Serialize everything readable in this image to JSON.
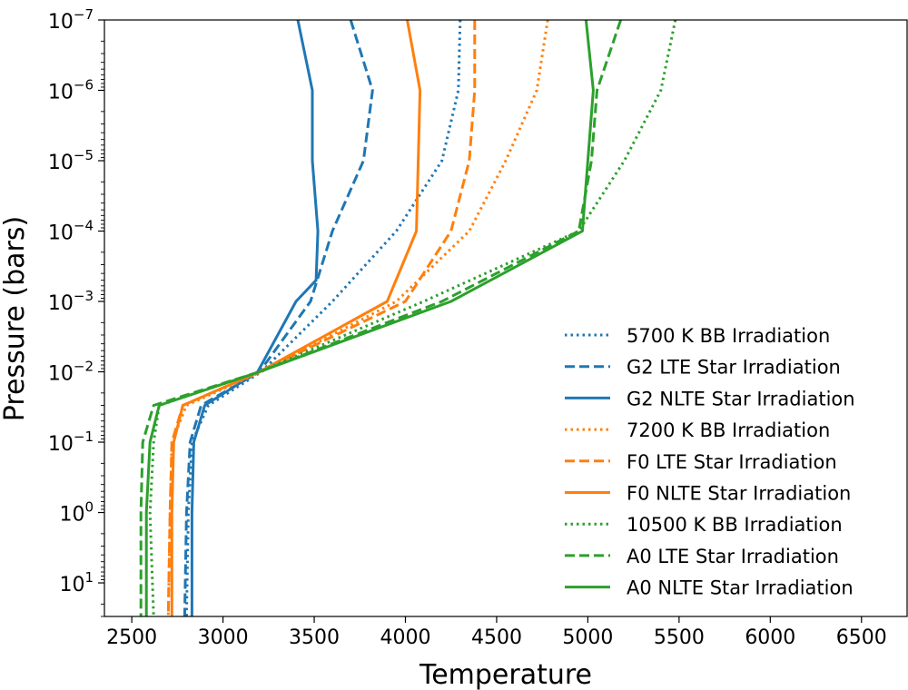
{
  "chart_data": {
    "type": "line",
    "title": "",
    "xlabel": "Temperature",
    "ylabel": "Pressure (bars)",
    "xlim": [
      2350,
      6750
    ],
    "ylim": [
      1e-07,
      30
    ],
    "y_scale": "log",
    "y_inverted": true,
    "grid": false,
    "legend_position": "center-right",
    "x_ticks": [
      2500,
      3000,
      3500,
      4000,
      4500,
      5000,
      5500,
      6000,
      6500
    ],
    "x_tick_labels": [
      "2500",
      "3000",
      "3500",
      "4000",
      "4500",
      "5000",
      "5500",
      "6000",
      "6500"
    ],
    "y_ticks": [
      {
        "value": 1e-07,
        "base": "10",
        "exp": "−7"
      },
      {
        "value": 1e-06,
        "base": "10",
        "exp": "−6"
      },
      {
        "value": 1e-05,
        "base": "10",
        "exp": "−5"
      },
      {
        "value": 0.0001,
        "base": "10",
        "exp": "−4"
      },
      {
        "value": 0.001,
        "base": "10",
        "exp": "−3"
      },
      {
        "value": 0.01,
        "base": "10",
        "exp": "−2"
      },
      {
        "value": 0.1,
        "base": "10",
        "exp": "−1"
      },
      {
        "value": 1,
        "base": "10",
        "exp": "0"
      },
      {
        "value": 10,
        "base": "10",
        "exp": "1"
      }
    ],
    "colors": {
      "G2": "#1f77b4",
      "F0": "#ff7f0e",
      "A0": "#2ca02c"
    },
    "series": [
      {
        "name": "5700 K BB Irradiation",
        "color": "#1f77b4",
        "style": "dotted",
        "points": [
          [
            4300,
            1e-07
          ],
          [
            4290,
            1e-06
          ],
          [
            4200,
            1e-05
          ],
          [
            3950,
            0.0001
          ],
          [
            3600,
            0.001
          ],
          [
            3210,
            0.01
          ],
          [
            2920,
            0.03
          ],
          [
            2830,
            0.1
          ],
          [
            2810,
            1
          ],
          [
            2800,
            30
          ]
        ]
      },
      {
        "name": "G2 LTE Star Irradiation",
        "color": "#1f77b4",
        "style": "dashed",
        "points": [
          [
            3700,
            1e-07
          ],
          [
            3820,
            1e-06
          ],
          [
            3770,
            1e-05
          ],
          [
            3600,
            0.0001
          ],
          [
            3480,
            0.001
          ],
          [
            3200,
            0.01
          ],
          [
            2880,
            0.03
          ],
          [
            2820,
            0.1
          ],
          [
            2800,
            1
          ],
          [
            2790,
            30
          ]
        ]
      },
      {
        "name": "G2 NLTE Star Irradiation",
        "color": "#1f77b4",
        "style": "solid",
        "points": [
          [
            3410,
            1e-07
          ],
          [
            3490,
            1e-06
          ],
          [
            3490,
            1e-05
          ],
          [
            3520,
            0.0001
          ],
          [
            3510,
            0.0005
          ],
          [
            3400,
            0.001
          ],
          [
            3190,
            0.01
          ],
          [
            2900,
            0.03
          ],
          [
            2840,
            0.1
          ],
          [
            2830,
            1
          ],
          [
            2830,
            30
          ]
        ]
      },
      {
        "name": "7200 K BB Irradiation",
        "color": "#ff7f0e",
        "style": "dotted",
        "points": [
          [
            4780,
            1e-07
          ],
          [
            4720,
            1e-06
          ],
          [
            4550,
            1e-05
          ],
          [
            4350,
            0.0001
          ],
          [
            3950,
            0.001
          ],
          [
            3210,
            0.01
          ],
          [
            2800,
            0.03
          ],
          [
            2720,
            0.1
          ],
          [
            2710,
            1
          ],
          [
            2700,
            30
          ]
        ]
      },
      {
        "name": "F0 LTE Star Irradiation",
        "color": "#ff7f0e",
        "style": "dashed",
        "points": [
          [
            4380,
            1e-07
          ],
          [
            4380,
            1e-06
          ],
          [
            4350,
            1e-05
          ],
          [
            4250,
            0.0001
          ],
          [
            4000,
            0.001
          ],
          [
            3200,
            0.01
          ],
          [
            2780,
            0.03
          ],
          [
            2720,
            0.1
          ],
          [
            2710,
            1
          ],
          [
            2700,
            30
          ]
        ]
      },
      {
        "name": "F0 NLTE Star Irradiation",
        "color": "#ff7f0e",
        "style": "solid",
        "points": [
          [
            4010,
            1e-07
          ],
          [
            4080,
            1e-06
          ],
          [
            4070,
            1e-05
          ],
          [
            4060,
            0.0001
          ],
          [
            3900,
            0.001
          ],
          [
            3200,
            0.01
          ],
          [
            2780,
            0.03
          ],
          [
            2730,
            0.1
          ],
          [
            2720,
            1
          ],
          [
            2720,
            30
          ]
        ]
      },
      {
        "name": "10500 K BB Irradiation",
        "color": "#2ca02c",
        "style": "dotted",
        "points": [
          [
            5480,
            1e-07
          ],
          [
            5400,
            1e-06
          ],
          [
            5200,
            1e-05
          ],
          [
            4950,
            0.0001
          ],
          [
            4100,
            0.001
          ],
          [
            3200,
            0.01
          ],
          [
            2650,
            0.03
          ],
          [
            2620,
            0.1
          ],
          [
            2600,
            1
          ],
          [
            2620,
            30
          ]
        ]
      },
      {
        "name": "A0 LTE Star Irradiation",
        "color": "#2ca02c",
        "style": "dashed",
        "points": [
          [
            5180,
            1e-07
          ],
          [
            5050,
            1e-06
          ],
          [
            5020,
            1e-05
          ],
          [
            4950,
            0.0001
          ],
          [
            4200,
            0.001
          ],
          [
            3200,
            0.01
          ],
          [
            2620,
            0.03
          ],
          [
            2560,
            0.1
          ],
          [
            2550,
            1
          ],
          [
            2550,
            30
          ]
        ]
      },
      {
        "name": "A0 NLTE Star Irradiation",
        "color": "#2ca02c",
        "style": "solid",
        "points": [
          [
            4990,
            1e-07
          ],
          [
            5030,
            1e-06
          ],
          [
            5000,
            1e-05
          ],
          [
            4970,
            0.0001
          ],
          [
            4250,
            0.001
          ],
          [
            3200,
            0.01
          ],
          [
            2650,
            0.03
          ],
          [
            2600,
            0.1
          ],
          [
            2580,
            1
          ],
          [
            2580,
            30
          ]
        ]
      }
    ]
  }
}
